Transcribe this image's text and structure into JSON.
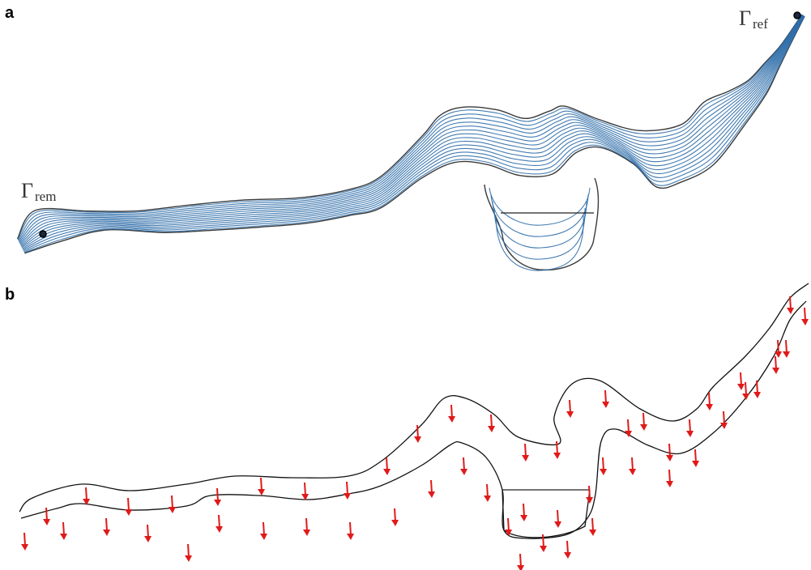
{
  "panels": [
    {
      "letter": "a"
    },
    {
      "letter": "b"
    }
  ],
  "labels": {
    "gamma_symbol": "Γ",
    "rem_subscript": "rem",
    "ref_subscript": "ref"
  }
}
